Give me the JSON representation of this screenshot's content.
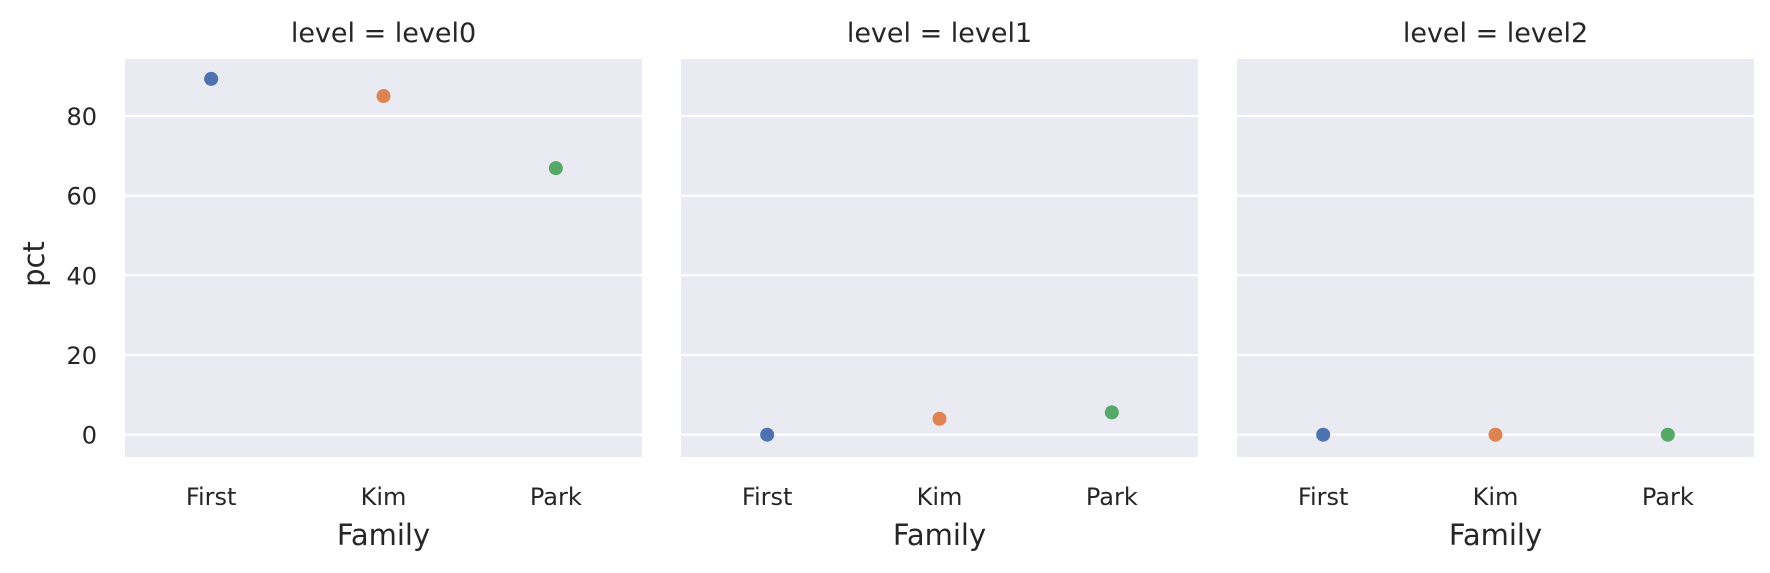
{
  "chart_data": {
    "type": "scatter",
    "xlabel": "Family",
    "ylabel": "pct",
    "categories": [
      "First",
      "Kim",
      "Park"
    ],
    "category_colors": [
      "#4c72b0",
      "#dd8452",
      "#55a868"
    ],
    "yticks": [
      0,
      20,
      40,
      60,
      80
    ],
    "ylim": [
      -5.6,
      94.3
    ],
    "grid": true,
    "facets": [
      {
        "title": "level = level0",
        "values": [
          89.3,
          85.0,
          66.9
        ]
      },
      {
        "title": "level = level1",
        "values": [
          0.0,
          4.0,
          5.6
        ]
      },
      {
        "title": "level = level2",
        "values": [
          0.0,
          0.0,
          0.0
        ]
      }
    ]
  }
}
